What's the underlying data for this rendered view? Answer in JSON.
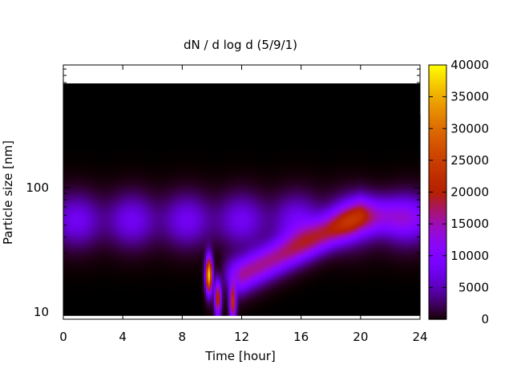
{
  "chart_data": {
    "type": "heatmap",
    "title": "dN / d log d (5/9/1)",
    "xlabel": "Time [hour]",
    "ylabel": "Particle size [nm]",
    "xlim": [
      0,
      24
    ],
    "x_ticks": [
      "0",
      "4",
      "8",
      "12",
      "16",
      "20",
      "24"
    ],
    "y_scale": "log",
    "y_ticks": [
      "10",
      "100"
    ],
    "colorbar": {
      "range": [
        0,
        40000
      ],
      "ticks": [
        "0",
        "5000",
        "10000",
        "15000",
        "20000",
        "25000",
        "30000",
        "35000",
        "40000"
      ],
      "colormap": "black-purple-red-orange-yellow (gnuplot)"
    },
    "features": [
      {
        "description": "background particle mode",
        "time_range_hour": [
          0,
          24
        ],
        "size_nm": 55,
        "value": 8000
      },
      {
        "description": "nucleation burst peak",
        "time_hour": 9.8,
        "size_nm": 20,
        "value": 37000
      },
      {
        "description": "secondary burst",
        "time_hour": 10.4,
        "size_nm": 13,
        "value": 22000
      },
      {
        "description": "secondary burst",
        "time_hour": 11.4,
        "size_nm": 12,
        "value": 22000
      },
      {
        "description": "growing mode",
        "time_range_hour": [
          12,
          20
        ],
        "size_nm_range": [
          20,
          60
        ],
        "value": 16000
      }
    ],
    "grid": false
  }
}
